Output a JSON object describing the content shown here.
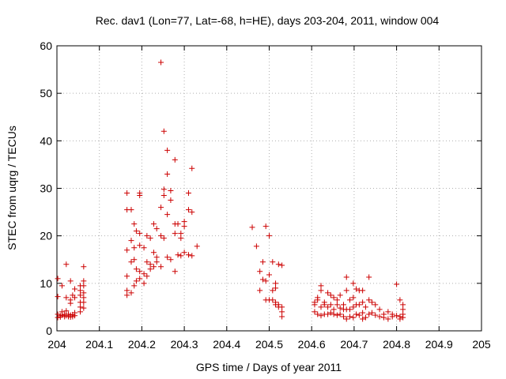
{
  "chart_data": {
    "type": "scatter",
    "title": "Rec. dav1 (Lon=77, Lat=-68, h=HE), days 203-204, 2011, window 004",
    "xlabel": "GPS time / Days of year 2011",
    "ylabel": "STEC from uqrg / TECUs",
    "xlim": [
      204,
      205
    ],
    "ylim": [
      0,
      60
    ],
    "xticks": [
      "204",
      "204.1",
      "204.2",
      "204.3",
      "204.4",
      "204.5",
      "204.6",
      "204.7",
      "204.8",
      "204.9",
      "205"
    ],
    "yticks": [
      "0",
      "10",
      "20",
      "30",
      "40",
      "50",
      "60"
    ],
    "grid": true,
    "marker": "+",
    "color": "#cc0000",
    "points": [
      [
        204.002,
        11.0
      ],
      [
        204.002,
        7.2
      ],
      [
        204.002,
        3.5
      ],
      [
        204.002,
        2.8
      ],
      [
        204.008,
        3.2
      ],
      [
        204.008,
        2.9
      ],
      [
        204.012,
        9.5
      ],
      [
        204.012,
        4.0
      ],
      [
        204.012,
        3.3
      ],
      [
        204.018,
        3.5
      ],
      [
        204.018,
        3.0
      ],
      [
        204.022,
        14.0
      ],
      [
        204.022,
        7.0
      ],
      [
        204.022,
        4.2
      ],
      [
        204.022,
        3.2
      ],
      [
        204.027,
        3.5
      ],
      [
        204.027,
        3.0
      ],
      [
        204.032,
        10.5
      ],
      [
        204.032,
        6.5
      ],
      [
        204.032,
        5.8
      ],
      [
        204.032,
        3.3
      ],
      [
        204.032,
        2.9
      ],
      [
        204.037,
        7.5
      ],
      [
        204.037,
        3.4
      ],
      [
        204.037,
        3.0
      ],
      [
        204.042,
        8.8
      ],
      [
        204.042,
        7.0
      ],
      [
        204.042,
        3.8
      ],
      [
        204.042,
        3.2
      ],
      [
        204.055,
        9.5
      ],
      [
        204.055,
        8.5
      ],
      [
        204.055,
        7.5
      ],
      [
        204.055,
        6.0
      ],
      [
        204.055,
        5.0
      ],
      [
        204.055,
        4.0
      ],
      [
        204.063,
        13.5
      ],
      [
        204.063,
        10.5
      ],
      [
        204.063,
        9.5
      ],
      [
        204.063,
        8.0
      ],
      [
        204.063,
        7.0
      ],
      [
        204.063,
        6.0
      ],
      [
        204.063,
        4.8
      ],
      [
        204.165,
        29.0
      ],
      [
        204.165,
        25.5
      ],
      [
        204.165,
        17.0
      ],
      [
        204.165,
        11.5
      ],
      [
        204.165,
        8.5
      ],
      [
        204.165,
        7.5
      ],
      [
        204.175,
        25.5
      ],
      [
        204.175,
        19.0
      ],
      [
        204.175,
        14.5
      ],
      [
        204.175,
        8.0
      ],
      [
        204.182,
        22.5
      ],
      [
        204.182,
        17.5
      ],
      [
        204.182,
        15.0
      ],
      [
        204.182,
        9.5
      ],
      [
        204.187,
        21.0
      ],
      [
        204.187,
        13.0
      ],
      [
        204.187,
        10.5
      ],
      [
        204.195,
        29.0
      ],
      [
        204.195,
        28.5
      ],
      [
        204.195,
        20.5
      ],
      [
        204.195,
        18.0
      ],
      [
        204.195,
        12.5
      ],
      [
        204.195,
        11.0
      ],
      [
        204.205,
        17.5
      ],
      [
        204.205,
        12.0
      ],
      [
        204.205,
        10.0
      ],
      [
        204.212,
        20.0
      ],
      [
        204.212,
        14.5
      ],
      [
        204.212,
        11.5
      ],
      [
        204.22,
        19.5
      ],
      [
        204.22,
        14.0
      ],
      [
        204.22,
        13.0
      ],
      [
        204.228,
        22.5
      ],
      [
        204.228,
        16.5
      ],
      [
        204.228,
        13.5
      ],
      [
        204.235,
        21.5
      ],
      [
        204.235,
        15.5
      ],
      [
        204.235,
        14.5
      ],
      [
        204.245,
        56.5
      ],
      [
        204.245,
        26.0
      ],
      [
        204.245,
        20.0
      ],
      [
        204.245,
        13.5
      ],
      [
        204.252,
        42.0
      ],
      [
        204.252,
        29.8
      ],
      [
        204.252,
        28.5
      ],
      [
        204.252,
        19.5
      ],
      [
        204.26,
        38.0
      ],
      [
        204.26,
        33.0
      ],
      [
        204.26,
        24.5
      ],
      [
        204.26,
        15.5
      ],
      [
        204.268,
        29.5
      ],
      [
        204.268,
        27.5
      ],
      [
        204.268,
        15.0
      ],
      [
        204.278,
        36.0
      ],
      [
        204.278,
        22.5
      ],
      [
        204.278,
        20.5
      ],
      [
        204.278,
        12.5
      ],
      [
        204.285,
        22.5
      ],
      [
        204.285,
        16.0
      ],
      [
        204.292,
        20.5
      ],
      [
        204.292,
        19.5
      ],
      [
        204.292,
        15.8
      ],
      [
        204.3,
        23.0
      ],
      [
        204.3,
        22.0
      ],
      [
        204.3,
        16.5
      ],
      [
        204.31,
        29.0
      ],
      [
        204.31,
        25.5
      ],
      [
        204.31,
        16.0
      ],
      [
        204.318,
        34.2
      ],
      [
        204.318,
        25.0
      ],
      [
        204.318,
        15.8
      ],
      [
        204.33,
        17.8
      ],
      [
        204.46,
        21.8
      ],
      [
        204.47,
        17.8
      ],
      [
        204.478,
        12.5
      ],
      [
        204.478,
        8.5
      ],
      [
        204.485,
        14.5
      ],
      [
        204.485,
        10.8
      ],
      [
        204.492,
        22.0
      ],
      [
        204.492,
        10.5
      ],
      [
        204.492,
        6.5
      ],
      [
        204.5,
        20.0
      ],
      [
        204.5,
        11.8
      ],
      [
        204.5,
        6.5
      ],
      [
        204.508,
        14.5
      ],
      [
        204.508,
        8.5
      ],
      [
        204.508,
        6.5
      ],
      [
        204.515,
        10.0
      ],
      [
        204.515,
        9.0
      ],
      [
        204.515,
        6.0
      ],
      [
        204.515,
        5.5
      ],
      [
        204.522,
        14.0
      ],
      [
        204.522,
        5.5
      ],
      [
        204.522,
        5.0
      ],
      [
        204.53,
        13.8
      ],
      [
        204.53,
        5.0
      ],
      [
        204.53,
        4.0
      ],
      [
        204.53,
        3.0
      ],
      [
        204.607,
        6.0
      ],
      [
        204.607,
        5.5
      ],
      [
        204.607,
        4.0
      ],
      [
        204.614,
        7.0
      ],
      [
        204.614,
        6.5
      ],
      [
        204.614,
        3.5
      ],
      [
        204.622,
        9.5
      ],
      [
        204.622,
        8.5
      ],
      [
        204.622,
        5.0
      ],
      [
        204.622,
        3.2
      ],
      [
        204.63,
        6.0
      ],
      [
        204.63,
        5.5
      ],
      [
        204.63,
        3.5
      ],
      [
        204.638,
        8.0
      ],
      [
        204.638,
        5.0
      ],
      [
        204.638,
        3.5
      ],
      [
        204.645,
        7.5
      ],
      [
        204.645,
        5.5
      ],
      [
        204.645,
        3.8
      ],
      [
        204.652,
        7.0
      ],
      [
        204.652,
        4.5
      ],
      [
        204.652,
        3.5
      ],
      [
        204.66,
        6.5
      ],
      [
        204.66,
        5.5
      ],
      [
        204.66,
        3.3
      ],
      [
        204.667,
        7.5
      ],
      [
        204.667,
        4.8
      ],
      [
        204.667,
        3.5
      ],
      [
        204.675,
        5.5
      ],
      [
        204.675,
        4.5
      ],
      [
        204.675,
        3.0
      ],
      [
        204.682,
        11.3
      ],
      [
        204.682,
        8.5
      ],
      [
        204.682,
        4.5
      ],
      [
        204.682,
        2.5
      ],
      [
        204.69,
        6.5
      ],
      [
        204.69,
        4.5
      ],
      [
        204.69,
        3.0
      ],
      [
        204.698,
        10.0
      ],
      [
        204.698,
        7.0
      ],
      [
        204.698,
        5.0
      ],
      [
        204.698,
        2.8
      ],
      [
        204.705,
        8.8
      ],
      [
        204.705,
        5.5
      ],
      [
        204.705,
        3.5
      ],
      [
        204.712,
        8.5
      ],
      [
        204.712,
        5.5
      ],
      [
        204.712,
        3.3
      ],
      [
        204.72,
        8.5
      ],
      [
        204.72,
        6.0
      ],
      [
        204.72,
        3.8
      ],
      [
        204.72,
        2.5
      ],
      [
        204.727,
        5.0
      ],
      [
        204.727,
        2.8
      ],
      [
        204.735,
        11.3
      ],
      [
        204.735,
        6.5
      ],
      [
        204.735,
        3.5
      ],
      [
        204.742,
        6.0
      ],
      [
        204.742,
        3.8
      ],
      [
        204.75,
        5.5
      ],
      [
        204.75,
        3.3
      ],
      [
        204.76,
        4.5
      ],
      [
        204.76,
        3.0
      ],
      [
        204.77,
        3.5
      ],
      [
        204.77,
        2.8
      ],
      [
        204.78,
        4.0
      ],
      [
        204.78,
        2.5
      ],
      [
        204.79,
        3.5
      ],
      [
        204.79,
        3.0
      ],
      [
        204.8,
        9.8
      ],
      [
        204.8,
        3.2
      ],
      [
        204.808,
        6.5
      ],
      [
        204.808,
        3.0
      ],
      [
        204.808,
        2.5
      ],
      [
        204.815,
        5.5
      ],
      [
        204.815,
        4.5
      ],
      [
        204.815,
        3.5
      ],
      [
        204.815,
        2.8
      ]
    ]
  }
}
